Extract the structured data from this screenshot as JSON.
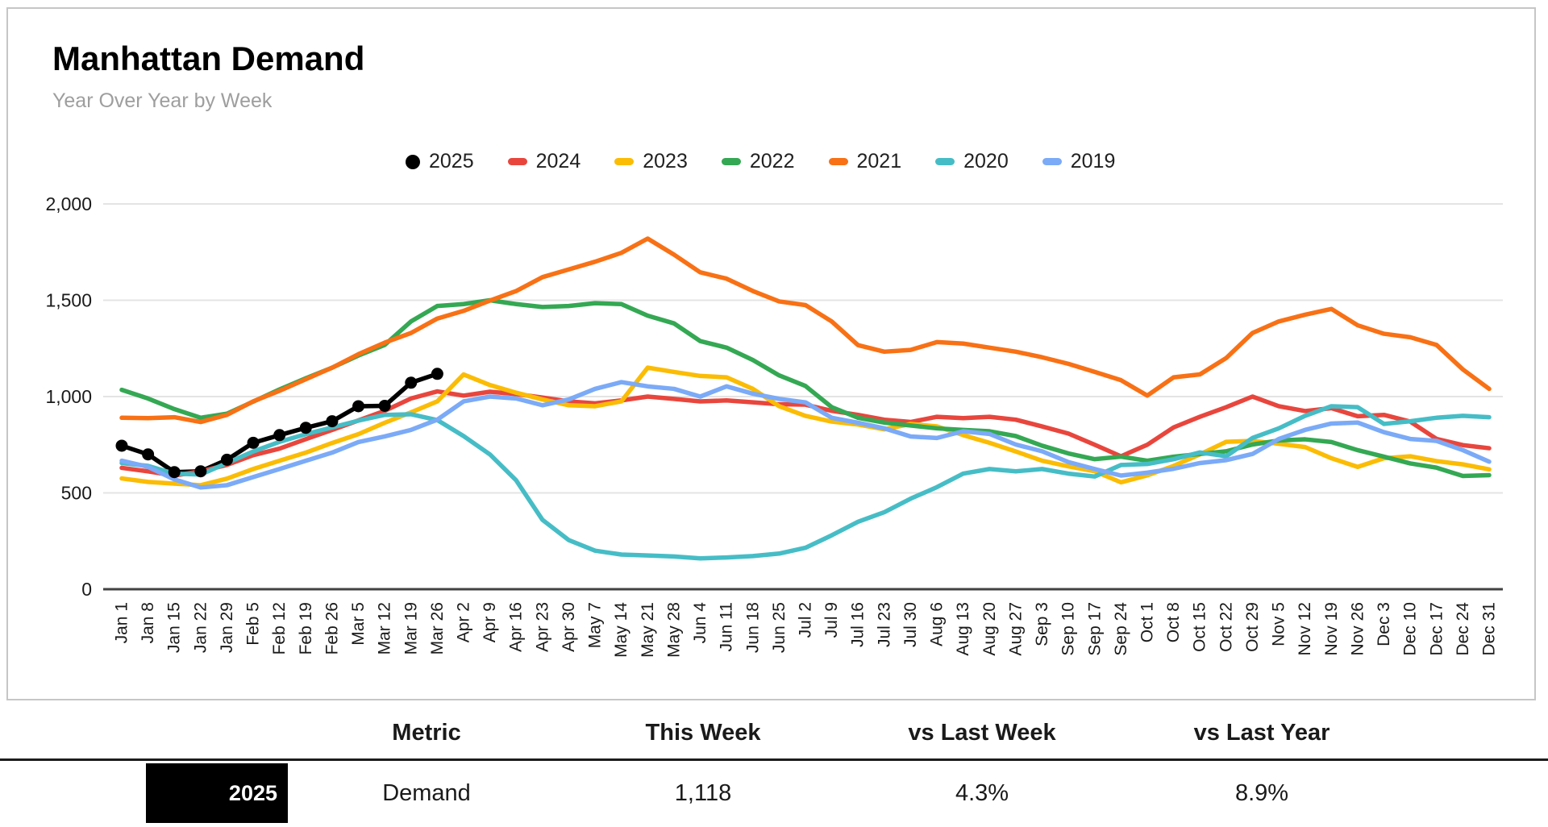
{
  "header": {
    "title": "Manhattan Demand",
    "subtitle": "Year Over Year by Week"
  },
  "chart_data": {
    "type": "line",
    "title": "Manhattan Demand",
    "subtitle": "Year Over Year by Week",
    "ylabel": "",
    "xlabel": "",
    "ylim": [
      0,
      2000
    ],
    "grid": true,
    "legend_position": "top",
    "y_ticks": [
      {
        "value": 0,
        "label": "0"
      },
      {
        "value": 500,
        "label": "500"
      },
      {
        "value": 1000,
        "label": "1,000"
      },
      {
        "value": 1500,
        "label": "1,500"
      },
      {
        "value": 2000,
        "label": "2,000"
      }
    ],
    "x_labels": [
      "Jan 1",
      "Jan 8",
      "Jan 15",
      "Jan 22",
      "Jan 29",
      "Feb 5",
      "Feb 12",
      "Feb 19",
      "Feb 26",
      "Mar 5",
      "Mar 12",
      "Mar 19",
      "Mar 26",
      "Apr 2",
      "Apr 9",
      "Apr 16",
      "Apr 23",
      "Apr 30",
      "May 7",
      "May 14",
      "May 21",
      "May 28",
      "Jun 4",
      "Jun 11",
      "Jun 18",
      "Jun 25",
      "Jul 2",
      "Jul 9",
      "Jul 16",
      "Jul 23",
      "Jul 30",
      "Aug 6",
      "Aug 13",
      "Aug 20",
      "Aug 27",
      "Sep 3",
      "Sep 10",
      "Sep 17",
      "Sep 24",
      "Oct 1",
      "Oct 8",
      "Oct 15",
      "Oct 22",
      "Oct 29",
      "Nov 5",
      "Nov 12",
      "Nov 19",
      "Nov 26",
      "Dec 3",
      "Dec 10",
      "Dec 17",
      "Dec 24",
      "Dec 31"
    ],
    "series": [
      {
        "name": "2025",
        "color": "#000000",
        "marker": "circle",
        "values": [
          745,
          700,
          608,
          612,
          672,
          760,
          800,
          838,
          872,
          950,
          952,
          1072,
          1118
        ]
      },
      {
        "name": "2024",
        "color": "#e8463d",
        "values": [
          630,
          612,
          590,
          612,
          645,
          696,
          730,
          779,
          827,
          876,
          926,
          990,
          1027,
          1005,
          1025,
          1013,
          995,
          975,
          965,
          980,
          1000,
          988,
          975,
          980,
          970,
          960,
          958,
          926,
          905,
          880,
          868,
          895,
          888,
          895,
          880,
          845,
          808,
          750,
          690,
          750,
          840,
          895,
          945,
          1000,
          950,
          925,
          940,
          898,
          905,
          870,
          780,
          748,
          732
        ]
      },
      {
        "name": "2023",
        "color": "#fbbc04",
        "values": [
          575,
          557,
          548,
          540,
          574,
          624,
          667,
          709,
          759,
          805,
          864,
          918,
          975,
          1115,
          1060,
          1020,
          985,
          955,
          950,
          975,
          1150,
          1128,
          1107,
          1100,
          1040,
          950,
          900,
          870,
          855,
          830,
          858,
          845,
          800,
          760,
          715,
          667,
          638,
          612,
          555,
          591,
          640,
          700,
          765,
          770,
          755,
          738,
          680,
          635,
          680,
          690,
          665,
          648,
          622
        ]
      },
      {
        "name": "2022",
        "color": "#34a853",
        "values": [
          1035,
          990,
          935,
          890,
          911,
          974,
          1037,
          1095,
          1150,
          1213,
          1268,
          1390,
          1470,
          1480,
          1500,
          1480,
          1465,
          1470,
          1485,
          1480,
          1420,
          1380,
          1288,
          1254,
          1190,
          1110,
          1055,
          945,
          890,
          865,
          850,
          835,
          827,
          820,
          795,
          745,
          705,
          675,
          688,
          667,
          688,
          702,
          716,
          751,
          772,
          778,
          764,
          722,
          688,
          653,
          631,
          588,
          592
        ]
      },
      {
        "name": "2021",
        "color": "#f87115",
        "values": [
          890,
          888,
          893,
          868,
          905,
          975,
          1030,
          1090,
          1150,
          1220,
          1280,
          1330,
          1405,
          1445,
          1498,
          1548,
          1620,
          1660,
          1700,
          1746,
          1820,
          1737,
          1645,
          1612,
          1548,
          1494,
          1475,
          1390,
          1267,
          1233,
          1242,
          1283,
          1275,
          1254,
          1233,
          1204,
          1170,
          1128,
          1085,
          1005,
          1100,
          1115,
          1200,
          1330,
          1390,
          1425,
          1455,
          1370,
          1326,
          1308,
          1268,
          1141,
          1040
        ]
      },
      {
        "name": "2020",
        "color": "#46bdc6",
        "values": [
          655,
          640,
          600,
          595,
          655,
          715,
          765,
          805,
          840,
          875,
          905,
          908,
          878,
          795,
          700,
          565,
          360,
          255,
          200,
          180,
          175,
          170,
          160,
          165,
          172,
          185,
          215,
          280,
          350,
          400,
          470,
          530,
          600,
          624,
          612,
          624,
          600,
          585,
          645,
          650,
          675,
          710,
          690,
          785,
          835,
          900,
          950,
          945,
          858,
          872,
          890,
          900,
          893
        ]
      },
      {
        "name": "2019",
        "color": "#7baaf7",
        "values": [
          667,
          635,
          570,
          528,
          540,
          582,
          624,
          667,
          709,
          764,
          793,
          827,
          880,
          975,
          1000,
          990,
          955,
          985,
          1040,
          1075,
          1053,
          1040,
          1000,
          1053,
          1015,
          988,
          970,
          890,
          864,
          835,
          793,
          785,
          820,
          806,
          751,
          716,
          660,
          624,
          590,
          605,
          625,
          655,
          670,
          702,
          780,
          827,
          860,
          865,
          815,
          780,
          770,
          722,
          662
        ]
      }
    ]
  },
  "table": {
    "headers": [
      "Metric",
      "This Week",
      "vs Last Week",
      "vs Last Year"
    ],
    "row": {
      "year": "2025",
      "metric": "Demand",
      "this_week": "1,118",
      "vs_last_week": "4.3%",
      "vs_last_year": "8.9%"
    }
  }
}
